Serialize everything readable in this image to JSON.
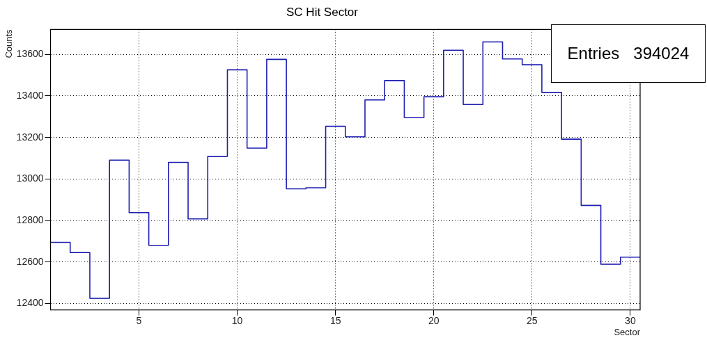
{
  "chart_data": {
    "type": "histogram",
    "title": "SC Hit Sector",
    "xlabel": "Sector",
    "ylabel": "Counts",
    "bins": [
      0.5,
      1.5,
      2.5,
      3.5,
      4.5,
      5.5,
      6.5,
      7.5,
      8.5,
      9.5,
      10.5,
      11.5,
      12.5,
      13.5,
      14.5,
      15.5,
      16.5,
      17.5,
      18.5,
      19.5,
      20.5,
      21.5,
      22.5,
      23.5,
      24.5,
      25.5,
      26.5,
      27.5,
      28.5,
      29.5,
      30.5
    ],
    "values": [
      12695,
      12646,
      12426,
      13091,
      12838,
      12681,
      13080,
      12808,
      13109,
      13526,
      13149,
      13576,
      12953,
      12958,
      13254,
      13203,
      13381,
      13474,
      13296,
      13396,
      13620,
      13359,
      13660,
      13578,
      13550,
      13417,
      13192,
      12873,
      12590,
      12624
    ],
    "color": "#1f1fb0",
    "xlim": [
      0.5,
      30.5
    ],
    "xticks": [
      5,
      10,
      15,
      20,
      25,
      30
    ],
    "ylim": [
      12370,
      13720
    ],
    "yticks": [
      12400,
      12600,
      12800,
      13000,
      13200,
      13400,
      13600
    ],
    "grid": true,
    "annotations": [
      "Entries   394024"
    ]
  }
}
